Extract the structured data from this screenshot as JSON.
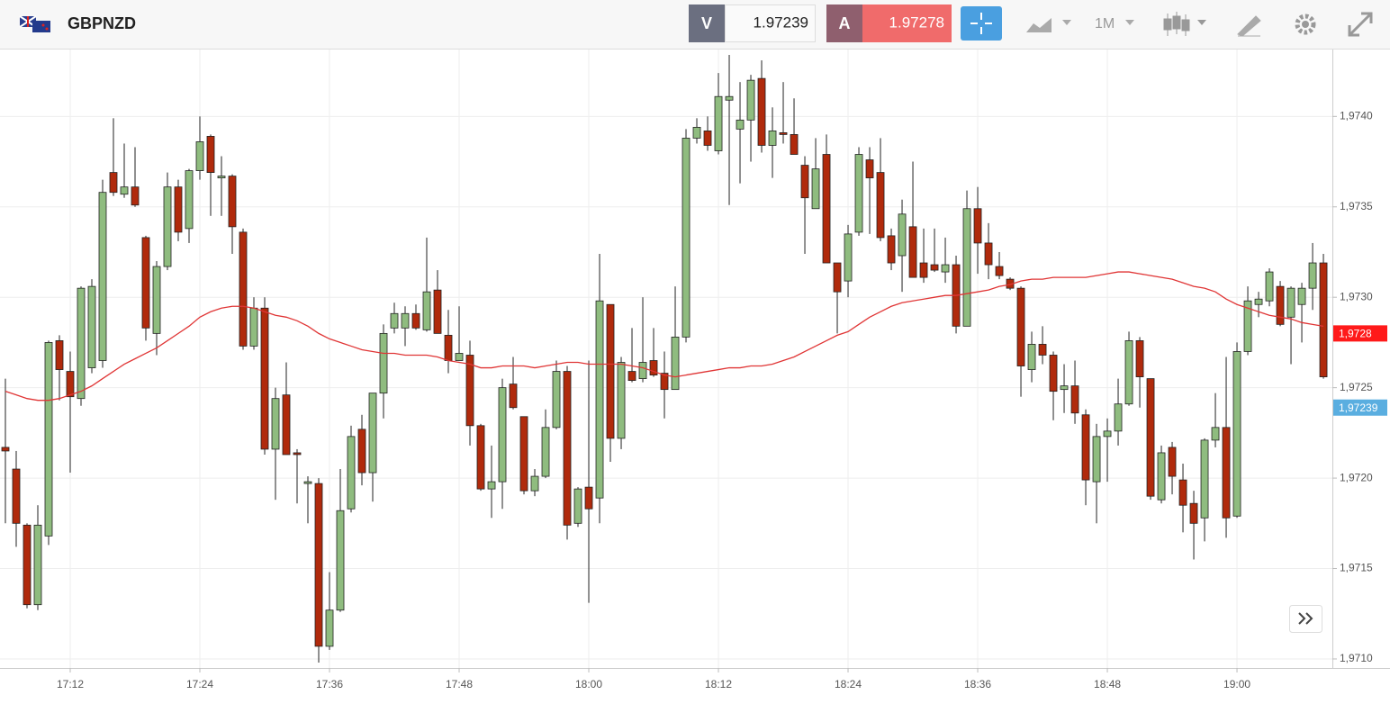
{
  "header": {
    "symbol": "GBPNZD",
    "bid_label": "V",
    "bid": "1.97239",
    "ask_label": "A",
    "ask": "1.97278",
    "timeframe": "1M"
  },
  "chart_data": {
    "type": "candlestick",
    "x": [
      1026,
      1027,
      1028,
      1029,
      1030,
      1031,
      1032,
      1033,
      1034,
      1035,
      1036,
      1037,
      1038,
      1039,
      1040,
      1041,
      1042,
      1043,
      1044,
      1045,
      1046,
      1047,
      1048,
      1049,
      1050,
      1051,
      1052,
      1053,
      1054,
      1055,
      1056,
      1057,
      1058,
      1059,
      1060,
      1061,
      1062,
      1063,
      1064,
      1065,
      1066,
      1067,
      1068,
      1069,
      1070,
      1071,
      1072,
      1073,
      1074,
      1075,
      1076,
      1077,
      1078,
      1079,
      1080,
      1081,
      1082,
      1083,
      1084,
      1085,
      1086,
      1087,
      1088,
      1089,
      1090,
      1091,
      1092,
      1093,
      1094,
      1095,
      1096,
      1097,
      1098,
      1099,
      1100,
      1101,
      1102,
      1103,
      1104,
      1105,
      1106,
      1107,
      1108,
      1109,
      1110,
      1111,
      1112,
      1113,
      1114,
      1115,
      1116,
      1117,
      1118,
      1119,
      1120,
      1121,
      1122,
      1123,
      1124,
      1125,
      1126,
      1127,
      1128,
      1129,
      1130,
      1131,
      1132,
      1133,
      1134,
      1135,
      1136,
      1137,
      1138,
      1139,
      1140,
      1141,
      1142,
      1143,
      1144,
      1145,
      1146,
      1147,
      1148
    ],
    "open": [
      1.97217,
      1.97205,
      1.97174,
      1.9713,
      1.97168,
      1.97276,
      1.97259,
      1.97244,
      1.97261,
      1.97265,
      1.97369,
      1.97357,
      1.97361,
      1.97333,
      1.9728,
      1.97317,
      1.97361,
      1.97338,
      1.9737,
      1.97389,
      1.97366,
      1.97367,
      1.97336,
      1.97273,
      1.97294,
      1.97216,
      1.97246,
      1.97214,
      1.97197,
      1.97197,
      1.97107,
      1.97127,
      1.97183,
      1.97227,
      1.97203,
      1.97247,
      1.97283,
      1.97283,
      1.97291,
      1.97282,
      1.97304,
      1.97279,
      1.97265,
      1.97268,
      1.97229,
      1.97194,
      1.97198,
      1.97252,
      1.97234,
      1.97193,
      1.97201,
      1.97228,
      1.97259,
      1.97175,
      1.97195,
      1.97189,
      1.97296,
      1.97222,
      1.97259,
      1.97255,
      1.97265,
      1.97258,
      1.97249,
      1.97278,
      1.97388,
      1.97392,
      1.97381,
      1.97409,
      1.97393,
      1.97398,
      1.97421,
      1.97384,
      1.97391,
      1.9739,
      1.97373,
      1.97349,
      1.97379,
      1.97319,
      1.97309,
      1.97336,
      1.97376,
      1.97369,
      1.97334,
      1.97323,
      1.97339,
      1.97319,
      1.97318,
      1.97314,
      1.97318,
      1.97284,
      1.97349,
      1.9733,
      1.97317,
      1.9731,
      1.97305,
      1.9726,
      1.97274,
      1.97268,
      1.97249,
      1.97251,
      1.97235,
      1.97198,
      1.97223,
      1.97226,
      1.97241,
      1.97276,
      1.97255,
      1.97188,
      1.97217,
      1.97199,
      1.97186,
      1.97178,
      1.97221,
      1.97228,
      1.97179,
      1.9727,
      1.97296,
      1.97298,
      1.97306,
      1.97289,
      1.97296,
      1.97305,
      1.97319
    ],
    "high": [
      1.97255,
      1.97215,
      1.97175,
      1.97185,
      1.97276,
      1.97279,
      1.9727,
      1.97306,
      1.9731,
      1.97365,
      1.97399,
      1.97385,
      1.97383,
      1.97334,
      1.9732,
      1.97369,
      1.97365,
      1.97371,
      1.974,
      1.9739,
      1.97378,
      1.97368,
      1.97338,
      1.973,
      1.973,
      1.9725,
      1.97264,
      1.97216,
      1.97201,
      1.972,
      1.97148,
      1.97205,
      1.97229,
      1.97235,
      1.97247,
      1.97285,
      1.97297,
      1.97295,
      1.97296,
      1.97333,
      1.97315,
      1.97293,
      1.97295,
      1.97276,
      1.9723,
      1.97218,
      1.97255,
      1.97267,
      1.97234,
      1.97205,
      1.97238,
      1.97265,
      1.97262,
      1.97195,
      1.97265,
      1.97324,
      1.97296,
      1.97267,
      1.97283,
      1.973,
      1.97283,
      1.9727,
      1.97306,
      1.97393,
      1.97399,
      1.974,
      1.97424,
      1.97434,
      1.97419,
      1.97423,
      1.97431,
      1.97405,
      1.97419,
      1.9741,
      1.97378,
      1.97388,
      1.9739,
      1.97319,
      1.9734,
      1.97383,
      1.97383,
      1.97388,
      1.97338,
      1.97354,
      1.97375,
      1.97338,
      1.97338,
      1.97333,
      1.97323,
      1.97359,
      1.97361,
      1.97341,
      1.97325,
      1.97311,
      1.97306,
      1.97281,
      1.97284,
      1.9727,
      1.97263,
      1.97265,
      1.97238,
      1.9723,
      1.97233,
      1.97255,
      1.97281,
      1.97278,
      1.97255,
      1.97218,
      1.9722,
      1.97208,
      1.97193,
      1.97222,
      1.97247,
      1.97267,
      1.97275,
      1.97306,
      1.97303,
      1.97316,
      1.97309,
      1.97306,
      1.97308,
      1.9733,
      1.97324
    ],
    "low": [
      1.97175,
      1.97162,
      1.97128,
      1.97127,
      1.97163,
      1.97243,
      1.97203,
      1.9724,
      1.97258,
      1.97261,
      1.97356,
      1.97355,
      1.9735,
      1.97276,
      1.97268,
      1.97315,
      1.97331,
      1.9733,
      1.97365,
      1.97345,
      1.97345,
      1.97324,
      1.97271,
      1.97271,
      1.97213,
      1.97188,
      1.97213,
      1.97186,
      1.97175,
      1.97098,
      1.97105,
      1.97126,
      1.97181,
      1.97196,
      1.97187,
      1.97233,
      1.9728,
      1.97273,
      1.97282,
      1.97281,
      1.9728,
      1.97258,
      1.97265,
      1.97218,
      1.97193,
      1.97178,
      1.97183,
      1.97238,
      1.97191,
      1.9719,
      1.972,
      1.97227,
      1.97166,
      1.97173,
      1.97131,
      1.97175,
      1.97209,
      1.97216,
      1.97253,
      1.97253,
      1.97256,
      1.97233,
      1.97249,
      1.97275,
      1.97385,
      1.97381,
      1.97379,
      1.97351,
      1.97363,
      1.97375,
      1.9738,
      1.97366,
      1.97385,
      1.97379,
      1.97324,
      1.97349,
      1.97319,
      1.9728,
      1.973,
      1.97334,
      1.97335,
      1.97331,
      1.97315,
      1.97303,
      1.97311,
      1.97308,
      1.97314,
      1.97308,
      1.9728,
      1.97284,
      1.97313,
      1.9731,
      1.9731,
      1.97304,
      1.97245,
      1.97253,
      1.97263,
      1.97232,
      1.97236,
      1.9723,
      1.97185,
      1.97175,
      1.97198,
      1.97218,
      1.9724,
      1.97239,
      1.97188,
      1.97186,
      1.97191,
      1.9717,
      1.97155,
      1.97165,
      1.97217,
      1.97167,
      1.97178,
      1.97268,
      1.97289,
      1.97295,
      1.97284,
      1.97263,
      1.97275,
      1.97293,
      1.97255
    ],
    "close": [
      1.97215,
      1.97175,
      1.9713,
      1.97174,
      1.97275,
      1.9726,
      1.97245,
      1.97305,
      1.97306,
      1.97358,
      1.97358,
      1.97361,
      1.97351,
      1.97283,
      1.97317,
      1.97361,
      1.97336,
      1.9737,
      1.97386,
      1.97369,
      1.97367,
      1.97339,
      1.97273,
      1.97294,
      1.97216,
      1.97244,
      1.97213,
      1.97213,
      1.97198,
      1.97107,
      1.97127,
      1.97182,
      1.97223,
      1.97203,
      1.97247,
      1.9728,
      1.97291,
      1.97291,
      1.97283,
      1.97303,
      1.9728,
      1.97265,
      1.97269,
      1.97229,
      1.97194,
      1.97198,
      1.9725,
      1.97239,
      1.97193,
      1.97201,
      1.97228,
      1.97259,
      1.97174,
      1.97194,
      1.97183,
      1.97298,
      1.97222,
      1.97264,
      1.97254,
      1.97264,
      1.97257,
      1.97249,
      1.97278,
      1.97388,
      1.97394,
      1.97384,
      1.97411,
      1.97411,
      1.97398,
      1.9742,
      1.97384,
      1.97392,
      1.9739,
      1.97379,
      1.97355,
      1.97371,
      1.97319,
      1.97303,
      1.97335,
      1.97379,
      1.97366,
      1.97333,
      1.97319,
      1.97346,
      1.97311,
      1.97311,
      1.97315,
      1.97318,
      1.97284,
      1.97349,
      1.9733,
      1.97318,
      1.97312,
      1.97305,
      1.97262,
      1.97274,
      1.97268,
      1.97248,
      1.97251,
      1.97236,
      1.97199,
      1.97223,
      1.97226,
      1.97241,
      1.97276,
      1.97256,
      1.9719,
      1.97214,
      1.97201,
      1.97185,
      1.97175,
      1.97221,
      1.97228,
      1.97178,
      1.9727,
      1.97298,
      1.97299,
      1.97314,
      1.97285,
      1.97305,
      1.97305,
      1.97319,
      1.97256
    ],
    "up_color": "#8fbc7f",
    "down_color": "#b02a0c",
    "ma": {
      "color": "#e03535",
      "values": [
        1.97248,
        1.97246,
        1.97244,
        1.97243,
        1.97243,
        1.97244,
        1.97246,
        1.97248,
        1.97251,
        1.97255,
        1.97259,
        1.97263,
        1.97266,
        1.97269,
        1.97272,
        1.97276,
        1.9728,
        1.97284,
        1.97289,
        1.97292,
        1.97294,
        1.97295,
        1.97295,
        1.97294,
        1.97292,
        1.9729,
        1.97289,
        1.97287,
        1.97284,
        1.9728,
        1.97277,
        1.97275,
        1.97273,
        1.97271,
        1.9727,
        1.97269,
        1.97269,
        1.97268,
        1.97268,
        1.97268,
        1.97267,
        1.97265,
        1.97264,
        1.97263,
        1.97261,
        1.97261,
        1.97262,
        1.97262,
        1.97262,
        1.97261,
        1.97262,
        1.97263,
        1.97264,
        1.97264,
        1.97263,
        1.97263,
        1.97263,
        1.97263,
        1.97262,
        1.97261,
        1.97259,
        1.97257,
        1.97256,
        1.97257,
        1.97258,
        1.97259,
        1.9726,
        1.97261,
        1.97261,
        1.97262,
        1.97262,
        1.97263,
        1.97265,
        1.97267,
        1.9727,
        1.97273,
        1.97276,
        1.97279,
        1.97281,
        1.97285,
        1.97289,
        1.97292,
        1.97295,
        1.97297,
        1.97298,
        1.97299,
        1.973,
        1.97301,
        1.97301,
        1.97302,
        1.97303,
        1.97304,
        1.97306,
        1.97307,
        1.97309,
        1.9731,
        1.9731,
        1.97311,
        1.97311,
        1.97311,
        1.97311,
        1.97312,
        1.97313,
        1.97314,
        1.97314,
        1.97313,
        1.97312,
        1.97311,
        1.9731,
        1.97308,
        1.97306,
        1.97305,
        1.97303,
        1.97299,
        1.97296,
        1.97294,
        1.97292,
        1.9729,
        1.97289,
        1.97288,
        1.97286,
        1.97285,
        1.97284
      ]
    },
    "xlim": [
      1025.5,
      1148.83
    ],
    "xticks": [
      {
        "value": 1032,
        "label": "17:12"
      },
      {
        "value": 1044,
        "label": "17:24"
      },
      {
        "value": 1056,
        "label": "17:36"
      },
      {
        "value": 1068,
        "label": "17:48"
      },
      {
        "value": 1080,
        "label": "18:00"
      },
      {
        "value": 1092,
        "label": "18:12"
      },
      {
        "value": 1104,
        "label": "18:24"
      },
      {
        "value": 1116,
        "label": "18:36"
      },
      {
        "value": 1128,
        "label": "18:48"
      },
      {
        "value": 1140,
        "label": "19:00"
      }
    ],
    "ylim": [
      1.97095,
      1.97437
    ],
    "yticks": [
      {
        "value": 1.971,
        "label": "1,9710"
      },
      {
        "value": 1.9715,
        "label": "1,9715"
      },
      {
        "value": 1.972,
        "label": "1,9720"
      },
      {
        "value": 1.9725,
        "label": "1,9725"
      },
      {
        "value": 1.973,
        "label": "1,9730"
      },
      {
        "value": 1.9735,
        "label": "1,9735"
      },
      {
        "value": 1.974,
        "label": "1,9740"
      }
    ],
    "grid": true,
    "price_tags": [
      {
        "value": 1.9728,
        "label": "1,9728",
        "color": "#ff1a1a"
      },
      {
        "value": 1.97239,
        "label": "1,97239",
        "color": "#5aaee0"
      }
    ]
  }
}
